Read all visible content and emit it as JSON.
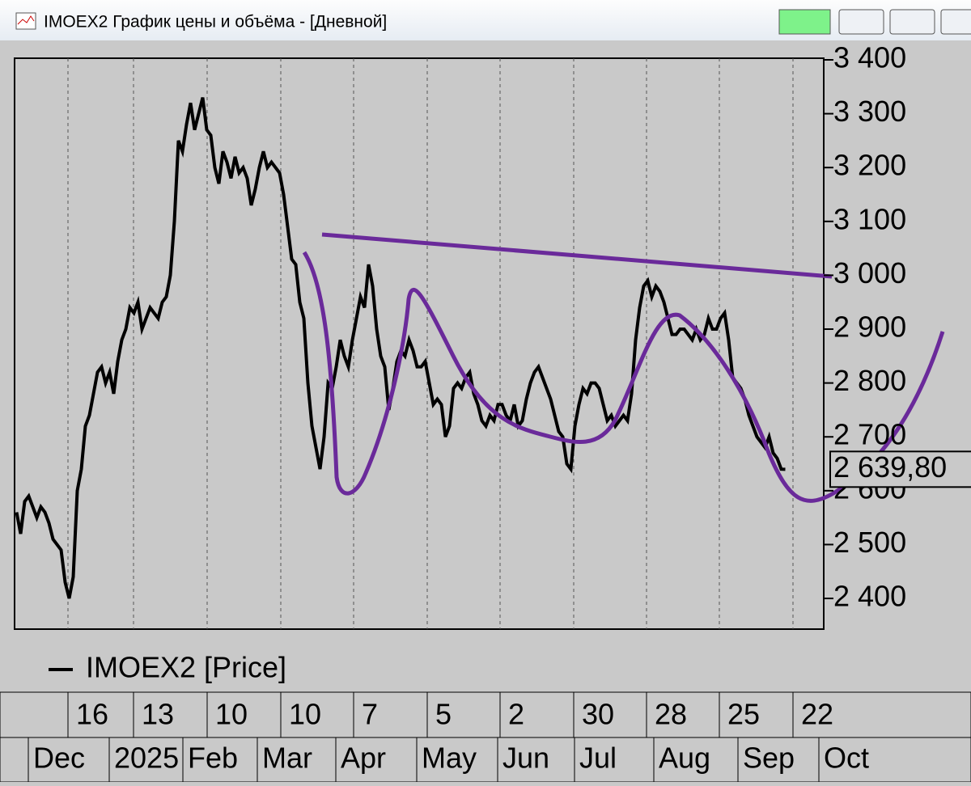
{
  "chart_data": {
    "type": "line",
    "title": "IMOEX2 График цены и объёма - [Дневной]",
    "series": [
      {
        "name": "IMOEX2 [Price]",
        "color": "#000000",
        "values": [
          2560,
          2520,
          2580,
          2590,
          2570,
          2550,
          2570,
          2560,
          2540,
          2510,
          2500,
          2490,
          2430,
          2400,
          2440,
          2600,
          2640,
          2720,
          2740,
          2780,
          2820,
          2830,
          2800,
          2820,
          2780,
          2840,
          2880,
          2900,
          2940,
          2930,
          2950,
          2900,
          2920,
          2940,
          2930,
          2920,
          2950,
          2960,
          3000,
          3100,
          3250,
          3230,
          3280,
          3320,
          3270,
          3300,
          3330,
          3270,
          3260,
          3200,
          3170,
          3230,
          3210,
          3180,
          3220,
          3190,
          3200,
          3180,
          3130,
          3160,
          3200,
          3230,
          3200,
          3210,
          3200,
          3190,
          3150,
          3090,
          3030,
          3020,
          2950,
          2920,
          2800,
          2720,
          2680,
          2640,
          2700,
          2800,
          2790,
          2830,
          2880,
          2850,
          2830,
          2880,
          2920,
          2960,
          2940,
          3020,
          2980,
          2900,
          2850,
          2830,
          2750,
          2790,
          2840,
          2860,
          2850,
          2880,
          2860,
          2830,
          2830,
          2840,
          2800,
          2760,
          2770,
          2760,
          2700,
          2720,
          2790,
          2800,
          2790,
          2810,
          2820,
          2780,
          2760,
          2730,
          2720,
          2740,
          2730,
          2760,
          2760,
          2740,
          2730,
          2760,
          2720,
          2730,
          2770,
          2800,
          2820,
          2830,
          2810,
          2790,
          2770,
          2740,
          2710,
          2700,
          2650,
          2640,
          2720,
          2760,
          2790,
          2780,
          2800,
          2800,
          2790,
          2760,
          2730,
          2740,
          2720,
          2730,
          2740,
          2730,
          2780,
          2880,
          2940,
          2980,
          2990,
          2960,
          2980,
          2970,
          2950,
          2920,
          2890,
          2890,
          2900,
          2900,
          2890,
          2880,
          2900,
          2880,
          2890,
          2920,
          2900,
          2900,
          2920,
          2930,
          2880,
          2810,
          2800,
          2790,
          2770,
          2740,
          2720,
          2700,
          2690,
          2680,
          2700,
          2670,
          2660,
          2640,
          2639.8
        ]
      }
    ],
    "last_price": {
      "value": 2639.8,
      "label": "2 639,80"
    },
    "xlim": [
      0,
      200
    ],
    "ylim": [
      2343,
      3403
    ],
    "yticks": [
      {
        "value": 2400,
        "label": "2 400"
      },
      {
        "value": 2500,
        "label": "2 500"
      },
      {
        "value": 2600,
        "label": "2 600"
      },
      {
        "value": 2700,
        "label": "2 700"
      },
      {
        "value": 2800,
        "label": "2 800"
      },
      {
        "value": 2900,
        "label": "2 900"
      },
      {
        "value": 3000,
        "label": "3 000"
      },
      {
        "value": 3100,
        "label": "3 100"
      },
      {
        "value": 3200,
        "label": "3 200"
      },
      {
        "value": 3300,
        "label": "3 300"
      },
      {
        "value": 3400,
        "label": "3 400"
      }
    ],
    "xticks": [
      {
        "value": 13.2,
        "label": "16"
      },
      {
        "value": 29.4,
        "label": "13"
      },
      {
        "value": 47.6,
        "label": "10"
      },
      {
        "value": 65.8,
        "label": "10"
      },
      {
        "value": 83.8,
        "label": "7"
      },
      {
        "value": 102,
        "label": "5"
      },
      {
        "value": 120,
        "label": "2"
      },
      {
        "value": 138.2,
        "label": "30"
      },
      {
        "value": 156.2,
        "label": "28"
      },
      {
        "value": 174.2,
        "label": "25"
      },
      {
        "value": 192.4,
        "label": "22"
      }
    ],
    "month_ticks": [
      {
        "value": 3.4,
        "label": "Dec"
      },
      {
        "value": 23.4,
        "label": "2025"
      },
      {
        "value": 41.6,
        "label": "Feb"
      },
      {
        "value": 60,
        "label": "Mar"
      },
      {
        "value": 79.4,
        "label": "Apr"
      },
      {
        "value": 99.4,
        "label": "May"
      },
      {
        "value": 119.4,
        "label": "Jun"
      },
      {
        "value": 138.4,
        "label": "Jul"
      },
      {
        "value": 158,
        "label": "Aug"
      },
      {
        "value": 178.8,
        "label": "Sep"
      },
      {
        "value": 198.8,
        "label": "Oct"
      }
    ],
    "grid": true
  }
}
